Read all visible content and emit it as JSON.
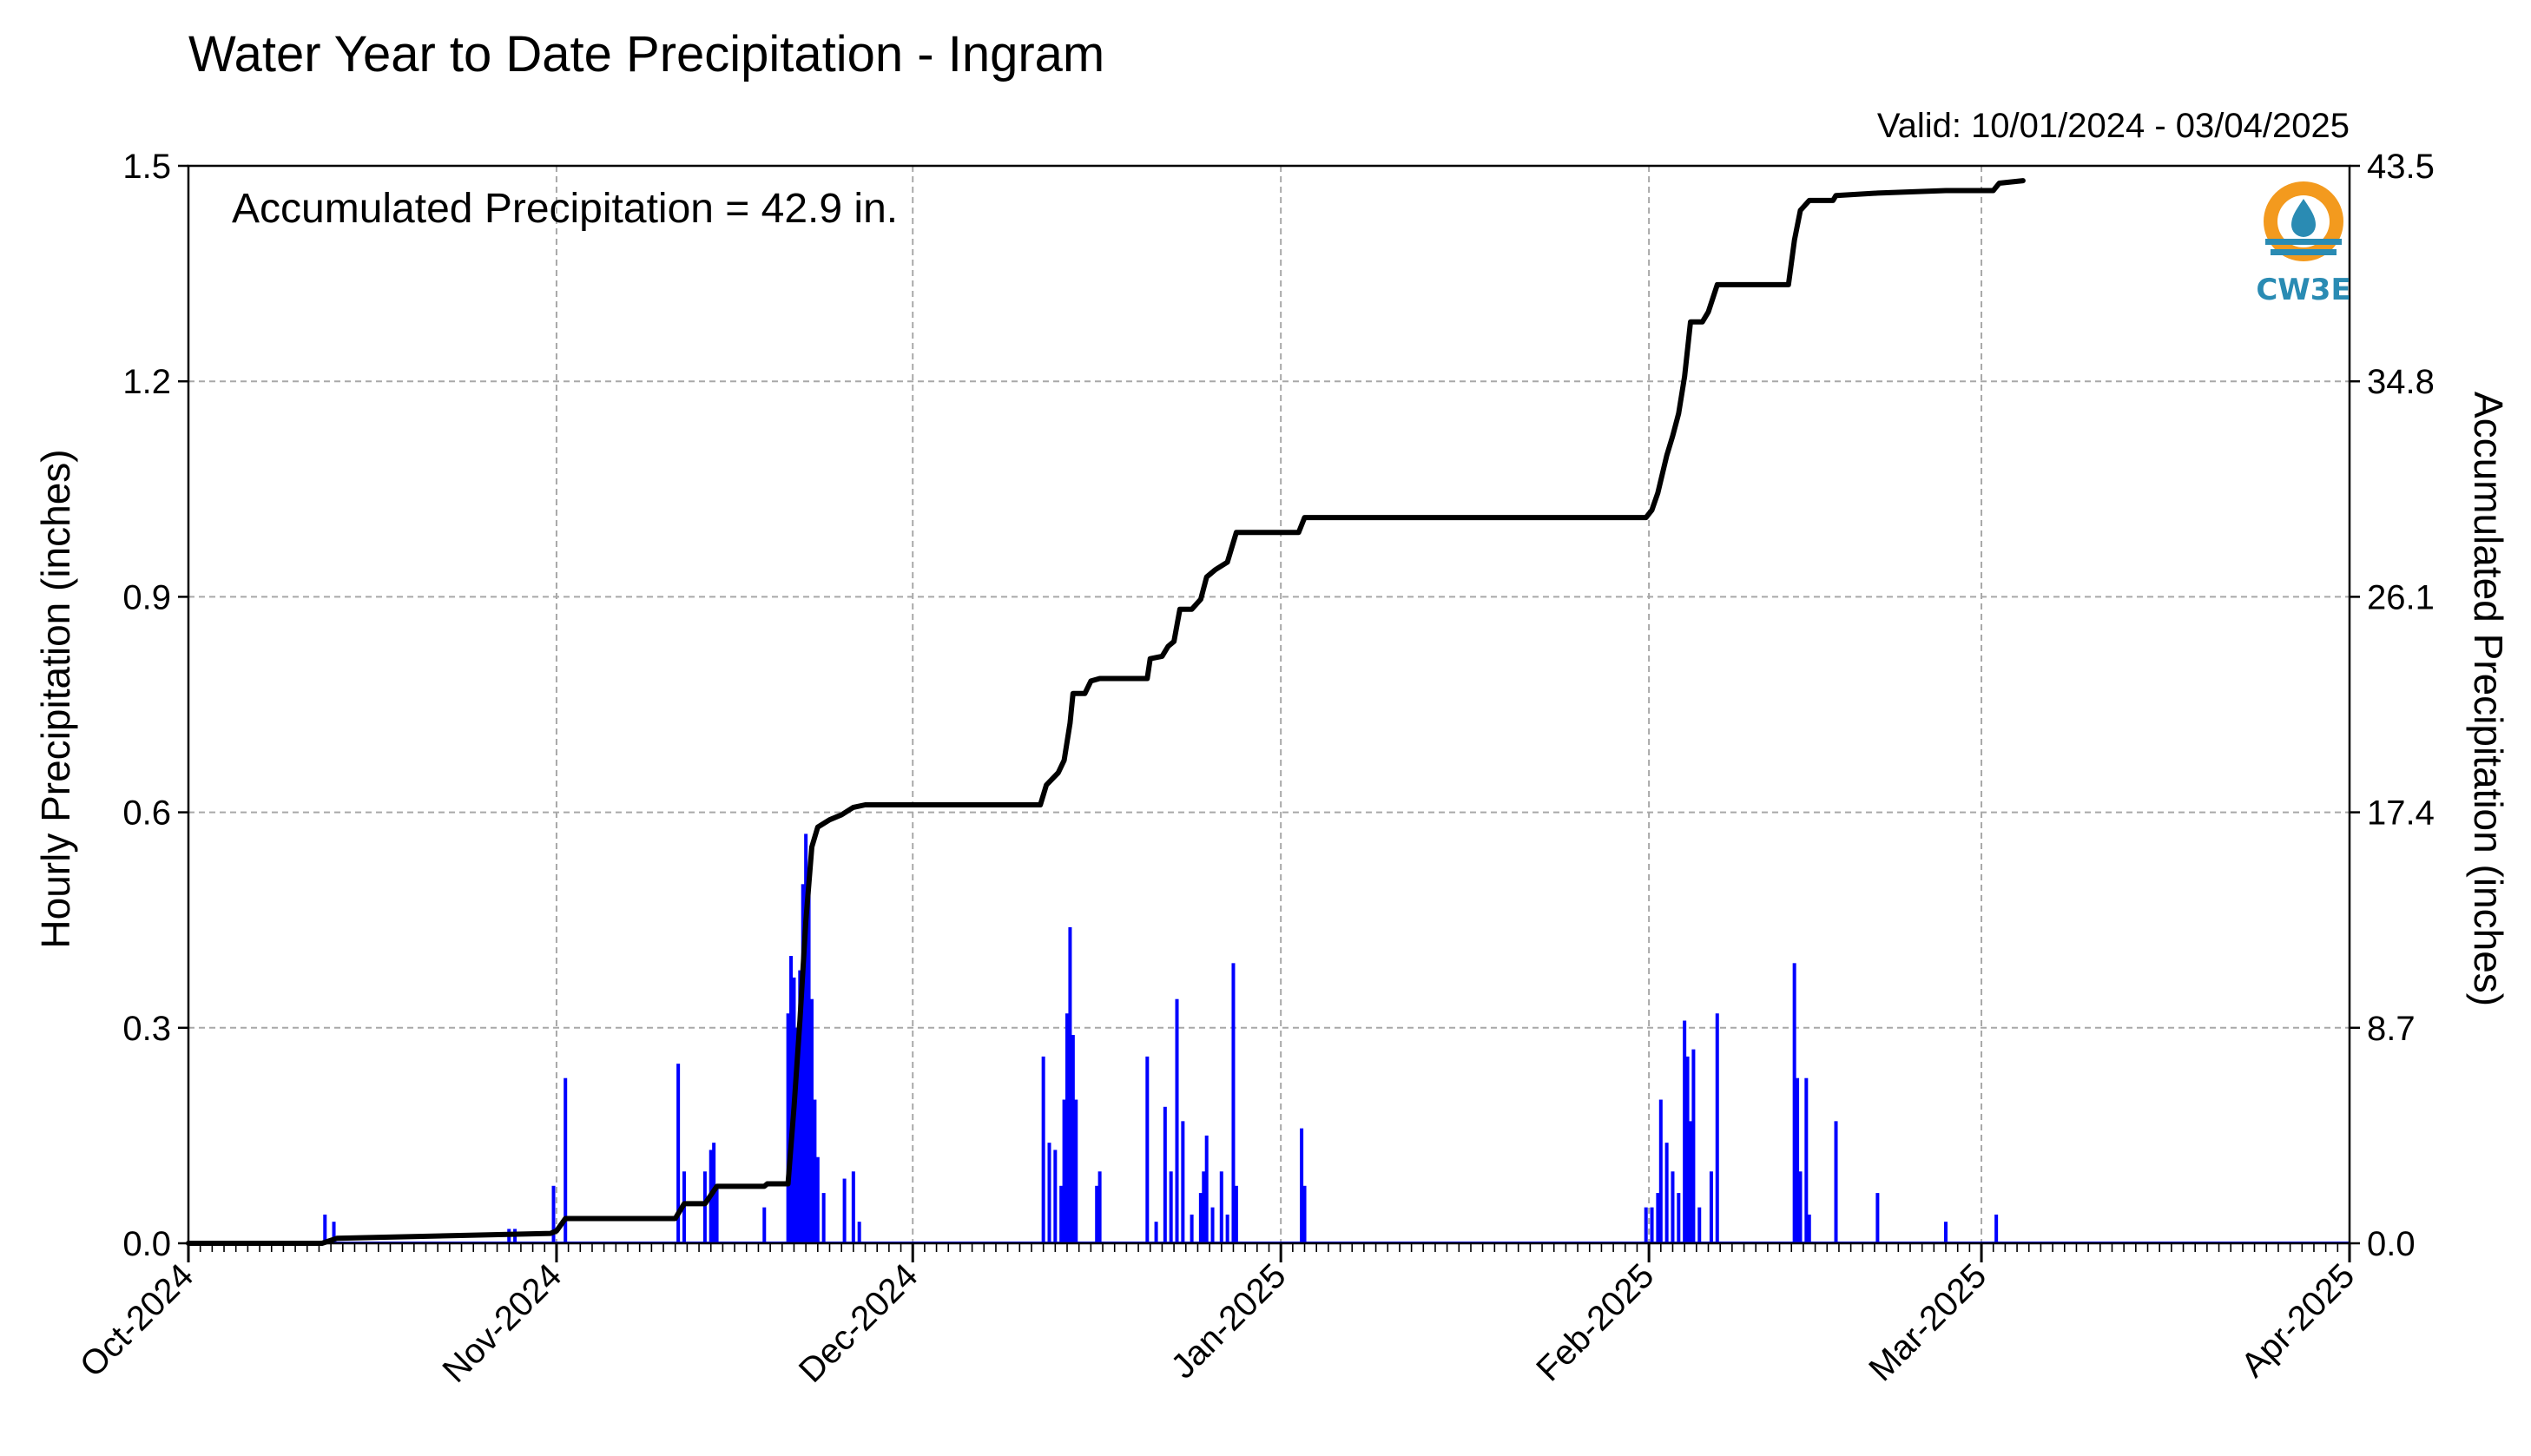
{
  "chart_data": {
    "type": "bar+line",
    "title": "Water Year to Date Precipitation - Ingram",
    "valid_label": "Valid: 10/01/2024 - 03/04/2025",
    "annotation": "Accumulated Precipitation = 42.9 in.",
    "logo_text": "CW3E",
    "ylabel_left": "Hourly Precipitation (inches)",
    "ylabel_right": "Accumulated Precipitation (inches)",
    "xlim": [
      "2024-10-01",
      "2025-04-01"
    ],
    "ylim_left": [
      0,
      1.5
    ],
    "ylim_right": [
      0,
      43.5
    ],
    "x_ticks": [
      {
        "date": "2024-10-01",
        "label": "Oct-2024"
      },
      {
        "date": "2024-11-01",
        "label": "Nov-2024"
      },
      {
        "date": "2024-12-01",
        "label": "Dec-2024"
      },
      {
        "date": "2025-01-01",
        "label": "Jan-2025"
      },
      {
        "date": "2025-02-01",
        "label": "Feb-2025"
      },
      {
        "date": "2025-03-01",
        "label": "Mar-2025"
      },
      {
        "date": "2025-04-01",
        "label": "Apr-2025"
      }
    ],
    "y_ticks_left": [
      "0.0",
      "0.3",
      "0.6",
      "0.9",
      "1.2",
      "1.5"
    ],
    "y_ticks_right": [
      "0.0",
      "8.7",
      "17.4",
      "26.1",
      "34.8",
      "43.5"
    ],
    "grid": true,
    "colors": {
      "hourly": "#0000ff",
      "accumulated": "#000000",
      "left_label": "#0000ff",
      "logo_orange": "#f39a1e",
      "logo_blue": "#2a8bb3"
    },
    "series": [
      {
        "name": "Hourly Precipitation",
        "axis": "left",
        "kind": "bar",
        "points": [
          [
            "2024-10-12T12",
            0.04
          ],
          [
            "2024-10-13T06",
            0.03
          ],
          [
            "2024-10-28T00",
            0.02
          ],
          [
            "2024-10-28T12",
            0.02
          ],
          [
            "2024-10-31T18",
            0.08
          ],
          [
            "2024-11-01T18",
            0.23
          ],
          [
            "2024-11-11T06",
            0.25
          ],
          [
            "2024-11-11T18",
            0.1
          ],
          [
            "2024-11-13T12",
            0.1
          ],
          [
            "2024-11-14T00",
            0.13
          ],
          [
            "2024-11-14T06",
            0.14
          ],
          [
            "2024-11-14T12",
            0.08
          ],
          [
            "2024-11-18T12",
            0.05
          ],
          [
            "2024-11-20T12",
            0.32
          ],
          [
            "2024-11-20T18",
            0.4
          ],
          [
            "2024-11-21T00",
            0.37
          ],
          [
            "2024-11-21T06",
            0.3
          ],
          [
            "2024-11-21T12",
            0.38
          ],
          [
            "2024-11-21T18",
            0.5
          ],
          [
            "2024-11-22T00",
            0.57
          ],
          [
            "2024-11-22T06",
            0.5
          ],
          [
            "2024-11-22T12",
            0.34
          ],
          [
            "2024-11-22T18",
            0.2
          ],
          [
            "2024-11-23T00",
            0.12
          ],
          [
            "2024-11-23T12",
            0.07
          ],
          [
            "2024-11-25T06",
            0.09
          ],
          [
            "2024-11-26T00",
            0.1
          ],
          [
            "2024-11-26T12",
            0.03
          ],
          [
            "2024-12-12T00",
            0.26
          ],
          [
            "2024-12-12T12",
            0.14
          ],
          [
            "2024-12-13T00",
            0.13
          ],
          [
            "2024-12-13T12",
            0.08
          ],
          [
            "2024-12-13T18",
            0.2
          ],
          [
            "2024-12-14T00",
            0.32
          ],
          [
            "2024-12-14T06",
            0.44
          ],
          [
            "2024-12-14T12",
            0.29
          ],
          [
            "2024-12-14T18",
            0.2
          ],
          [
            "2024-12-16T12",
            0.08
          ],
          [
            "2024-12-16T18",
            0.1
          ],
          [
            "2024-12-20T18",
            0.26
          ],
          [
            "2024-12-21T12",
            0.03
          ],
          [
            "2024-12-22T06",
            0.19
          ],
          [
            "2024-12-22T18",
            0.1
          ],
          [
            "2024-12-23T06",
            0.34
          ],
          [
            "2024-12-23T18",
            0.17
          ],
          [
            "2024-12-24T12",
            0.04
          ],
          [
            "2024-12-25T06",
            0.07
          ],
          [
            "2024-12-25T12",
            0.1
          ],
          [
            "2024-12-25T18",
            0.15
          ],
          [
            "2024-12-26T06",
            0.05
          ],
          [
            "2024-12-27T00",
            0.1
          ],
          [
            "2024-12-27T12",
            0.04
          ],
          [
            "2024-12-28T00",
            0.39
          ],
          [
            "2024-12-28T06",
            0.08
          ],
          [
            "2025-01-02T18",
            0.16
          ],
          [
            "2025-01-03T00",
            0.08
          ],
          [
            "2025-01-31T18",
            0.05
          ],
          [
            "2025-02-01T06",
            0.05
          ],
          [
            "2025-02-01T18",
            0.07
          ],
          [
            "2025-02-02T00",
            0.2
          ],
          [
            "2025-02-02T12",
            0.14
          ],
          [
            "2025-02-03T00",
            0.1
          ],
          [
            "2025-02-03T12",
            0.07
          ],
          [
            "2025-02-04T00",
            0.31
          ],
          [
            "2025-02-04T06",
            0.26
          ],
          [
            "2025-02-04T12",
            0.17
          ],
          [
            "2025-02-04T18",
            0.27
          ],
          [
            "2025-02-05T06",
            0.05
          ],
          [
            "2025-02-06T06",
            0.1
          ],
          [
            "2025-02-06T18",
            0.32
          ],
          [
            "2025-02-13T06",
            0.39
          ],
          [
            "2025-02-13T12",
            0.23
          ],
          [
            "2025-02-13T18",
            0.1
          ],
          [
            "2025-02-14T06",
            0.23
          ],
          [
            "2025-02-14T12",
            0.04
          ],
          [
            "2025-02-16T18",
            0.17
          ],
          [
            "2025-02-20T06",
            0.07
          ],
          [
            "2025-02-26T00",
            0.03
          ],
          [
            "2025-03-02T06",
            0.04
          ]
        ]
      },
      {
        "name": "Accumulated Precipitation",
        "axis": "right",
        "kind": "step-line",
        "points": [
          [
            "2024-10-01T00",
            0.0
          ],
          [
            "2024-10-12T06",
            0.0
          ],
          [
            "2024-10-13T12",
            0.2
          ],
          [
            "2024-10-31T12",
            0.4
          ],
          [
            "2024-11-01T00",
            0.5
          ],
          [
            "2024-11-01T18",
            1.0
          ],
          [
            "2024-11-11T00",
            1.0
          ],
          [
            "2024-11-11T18",
            1.6
          ],
          [
            "2024-11-13T12",
            1.6
          ],
          [
            "2024-11-14T12",
            2.3
          ],
          [
            "2024-11-18T12",
            2.3
          ],
          [
            "2024-11-18T18",
            2.4
          ],
          [
            "2024-11-20T12",
            2.4
          ],
          [
            "2024-11-21T00",
            5.5
          ],
          [
            "2024-11-21T12",
            9.0
          ],
          [
            "2024-11-22T00",
            13.0
          ],
          [
            "2024-11-22T12",
            16.0
          ],
          [
            "2024-11-23T00",
            16.8
          ],
          [
            "2024-11-24T00",
            17.1
          ],
          [
            "2024-11-25T00",
            17.3
          ],
          [
            "2024-11-26T00",
            17.6
          ],
          [
            "2024-11-27T00",
            17.7
          ],
          [
            "2024-12-11T18",
            17.7
          ],
          [
            "2024-12-12T06",
            18.5
          ],
          [
            "2024-12-13T06",
            19.0
          ],
          [
            "2024-12-13T18",
            19.5
          ],
          [
            "2024-12-14T06",
            21.0
          ],
          [
            "2024-12-14T12",
            22.2
          ],
          [
            "2024-12-15T12",
            22.2
          ],
          [
            "2024-12-16T00",
            22.7
          ],
          [
            "2024-12-16T18",
            22.8
          ],
          [
            "2024-12-20T18",
            22.8
          ],
          [
            "2024-12-21T00",
            23.6
          ],
          [
            "2024-12-22T00",
            23.7
          ],
          [
            "2024-12-22T12",
            24.1
          ],
          [
            "2024-12-23T00",
            24.3
          ],
          [
            "2024-12-23T12",
            25.6
          ],
          [
            "2024-12-24T12",
            25.6
          ],
          [
            "2024-12-25T06",
            26.0
          ],
          [
            "2024-12-25T18",
            26.9
          ],
          [
            "2024-12-26T12",
            27.2
          ],
          [
            "2024-12-27T12",
            27.5
          ],
          [
            "2024-12-28T06",
            28.7
          ],
          [
            "2025-01-02T12",
            28.7
          ],
          [
            "2025-01-03T00",
            29.3
          ],
          [
            "2025-01-31T18",
            29.3
          ],
          [
            "2025-02-01T06",
            29.6
          ],
          [
            "2025-02-01T18",
            30.3
          ],
          [
            "2025-02-02T12",
            31.8
          ],
          [
            "2025-02-03T00",
            32.6
          ],
          [
            "2025-02-03T12",
            33.5
          ],
          [
            "2025-02-04T00",
            35.0
          ],
          [
            "2025-02-04T12",
            37.2
          ],
          [
            "2025-02-05T12",
            37.2
          ],
          [
            "2025-02-06T00",
            37.6
          ],
          [
            "2025-02-06T18",
            38.7
          ],
          [
            "2025-02-12T18",
            38.7
          ],
          [
            "2025-02-13T06",
            40.5
          ],
          [
            "2025-02-13T18",
            41.7
          ],
          [
            "2025-02-14T12",
            42.1
          ],
          [
            "2025-02-16T12",
            42.1
          ],
          [
            "2025-02-16T18",
            42.3
          ],
          [
            "2025-02-20T06",
            42.4
          ],
          [
            "2025-02-26T00",
            42.5
          ],
          [
            "2025-03-02T00",
            42.5
          ],
          [
            "2025-03-02T12",
            42.8
          ],
          [
            "2025-03-04T12",
            42.9
          ]
        ]
      }
    ]
  }
}
